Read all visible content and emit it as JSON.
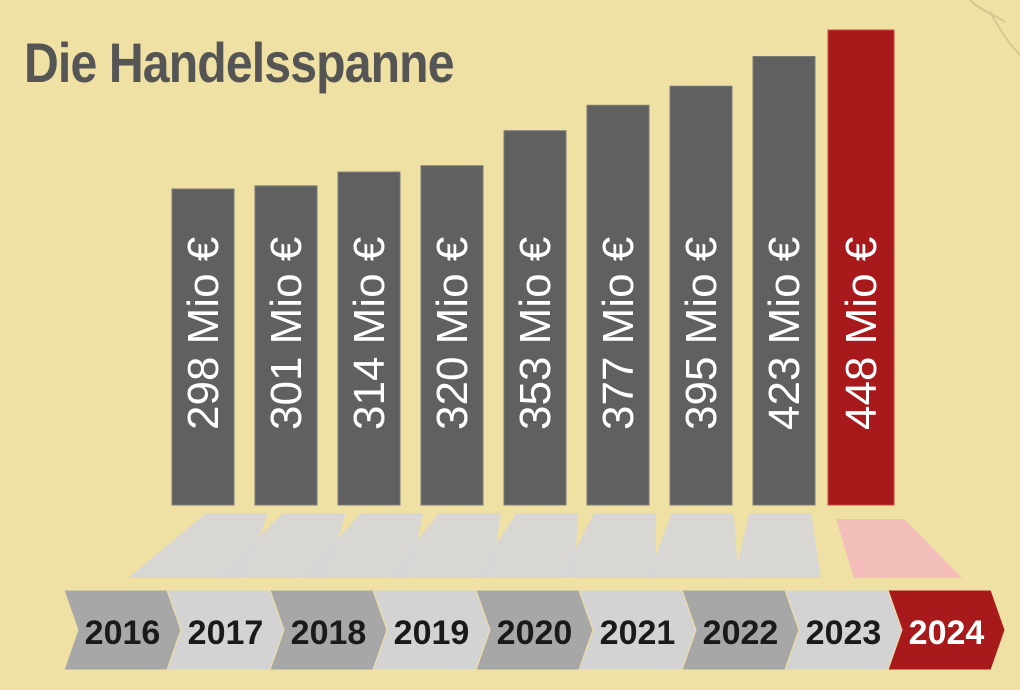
{
  "chart_data": {
    "type": "bar",
    "title": "Die Handelsspanne",
    "categories": [
      "2016",
      "2017",
      "2018",
      "2019",
      "2020",
      "2021",
      "2022",
      "2023",
      "2024"
    ],
    "values": [
      298,
      301,
      314,
      320,
      353,
      377,
      395,
      423,
      448
    ],
    "value_labels": [
      "298 Mio €",
      "301 Mio €",
      "314 Mio €",
      "320 Mio €",
      "353 Mio €",
      "377 Mio €",
      "395 Mio €",
      "423 Mio €",
      "448 Mio €"
    ],
    "unit": "Mio €",
    "highlight_category": "2024",
    "colors": {
      "background": "#efe0a3",
      "bar": "#606060",
      "bar_highlight": "#a8191b",
      "label_text": "#ffffff",
      "title": "#555555",
      "ribbon_dark": "#a7a7a7",
      "ribbon_light": "#d3d3d3",
      "ribbon_highlight": "#a8191b",
      "reflection": "#d6d6d6",
      "reflection_highlight": "#f2bcbc"
    }
  }
}
